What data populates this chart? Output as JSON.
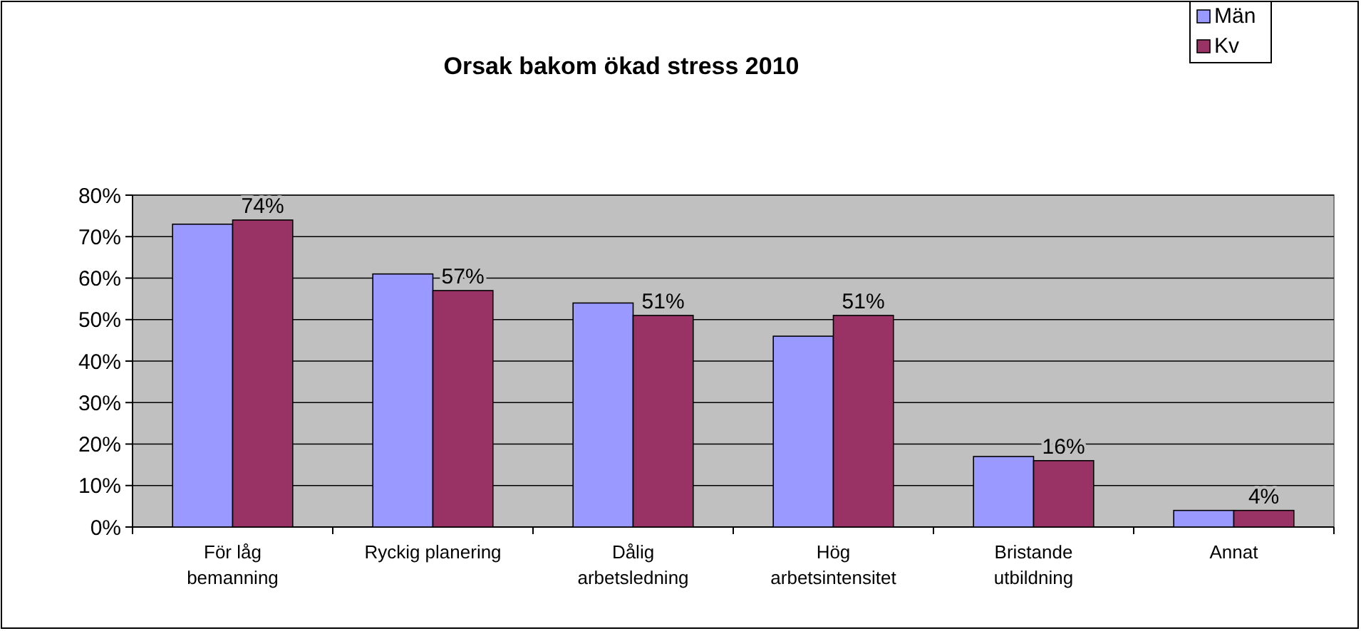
{
  "chart_data": {
    "type": "bar",
    "title": "Orsak bakom ökad stress 2010",
    "categories": [
      "För låg bemanning",
      "Ryckig planering",
      "Dålig arbetsledning",
      "Hög arbetsintensitet",
      "Bristande utbildning",
      "Annat"
    ],
    "series": [
      {
        "name": "Män",
        "color": "#9999ff",
        "values": [
          73,
          61,
          54,
          46,
          17,
          4
        ]
      },
      {
        "name": "Kv",
        "color": "#993366",
        "values": [
          74,
          57,
          51,
          51,
          16,
          4
        ],
        "value_labels": [
          "74%",
          "57%",
          "51%",
          "51%",
          "16%",
          "4%"
        ]
      }
    ],
    "ylim": [
      0,
      80
    ],
    "yticks": [
      {
        "value": 0,
        "label": "0%"
      },
      {
        "value": 10,
        "label": "10%"
      },
      {
        "value": 20,
        "label": "20%"
      },
      {
        "value": 30,
        "label": "30%"
      },
      {
        "value": 40,
        "label": "40%"
      },
      {
        "value": 50,
        "label": "50%"
      },
      {
        "value": 60,
        "label": "60%"
      },
      {
        "value": 70,
        "label": "70%"
      },
      {
        "value": 80,
        "label": "80%"
      }
    ],
    "grid": "y",
    "legend": "top right"
  }
}
